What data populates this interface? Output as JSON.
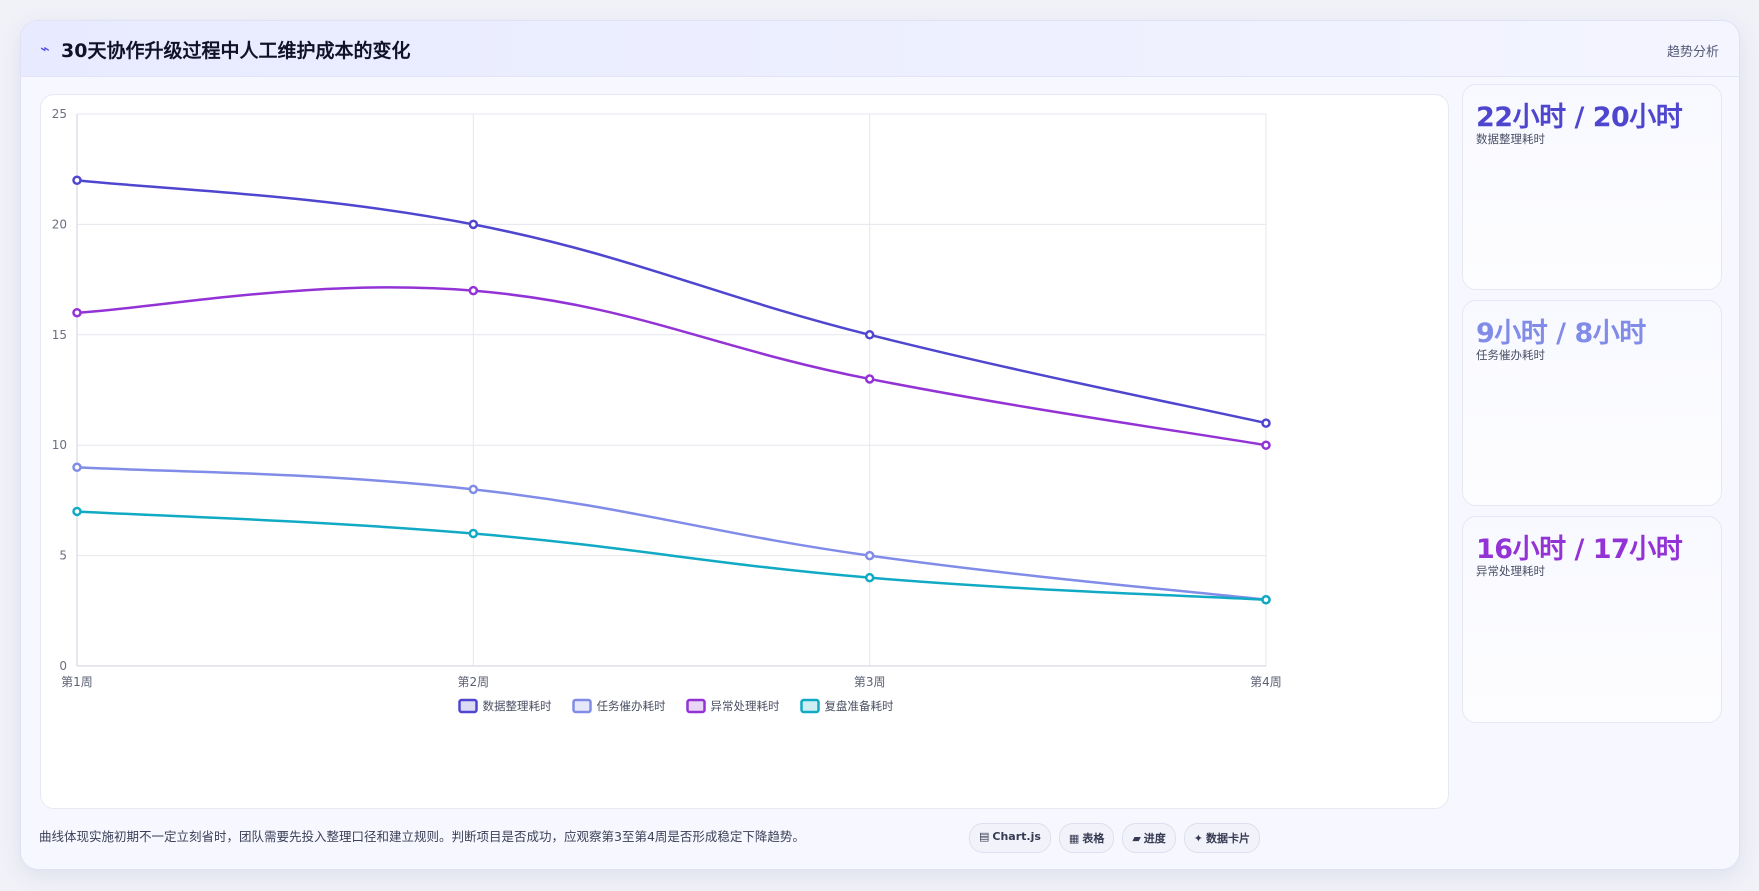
{
  "header": {
    "icon": "trend-icon",
    "icon_glyph": "⌁",
    "title": "30天协作升级过程中人工维护成本的变化",
    "badge": "趋势分析"
  },
  "chart_data": {
    "type": "line",
    "categories": [
      "第1周",
      "第2周",
      "第3周",
      "第4周"
    ],
    "ylim": [
      0,
      25
    ],
    "yticks": [
      0,
      5,
      10,
      15,
      20,
      25
    ],
    "grid": true,
    "legend_position": "bottom",
    "series": [
      {
        "name": "数据整理耗时",
        "values": [
          22,
          20,
          15,
          11
        ],
        "color": "#4f46cf"
      },
      {
        "name": "任务催办耗时",
        "values": [
          9,
          8,
          5,
          3
        ],
        "color": "#818ce8"
      },
      {
        "name": "异常处理耗时",
        "values": [
          16,
          17,
          13,
          10
        ],
        "color": "#9333d6"
      },
      {
        "name": "复盘准备耗时",
        "values": [
          7,
          6,
          4,
          3
        ],
        "color": "#10aac4"
      }
    ]
  },
  "stats": [
    {
      "value": "22小时 / 20小时",
      "label": "数据整理耗时",
      "color": "#4f46cf"
    },
    {
      "value": "9小时 / 8小时",
      "label": "任务催办耗时",
      "color": "#818ce8"
    },
    {
      "value": "16小时 / 17小时",
      "label": "异常处理耗时",
      "color": "#9333d6"
    }
  ],
  "footnote": "曲线体现实施初期不一定立刻省时，团队需要先投入整理口径和建立规则。判断项目是否成功，应观察第3至第4周是否形成稳定下降趋势。",
  "chips": [
    {
      "icon": "chart-icon",
      "glyph": "▤",
      "label": "Chart.js"
    },
    {
      "icon": "table-icon",
      "glyph": "▦",
      "label": "表格"
    },
    {
      "icon": "progress-icon",
      "glyph": "▰",
      "label": "进度"
    },
    {
      "icon": "data-card-icon",
      "glyph": "✦",
      "label": "数据卡片"
    }
  ]
}
